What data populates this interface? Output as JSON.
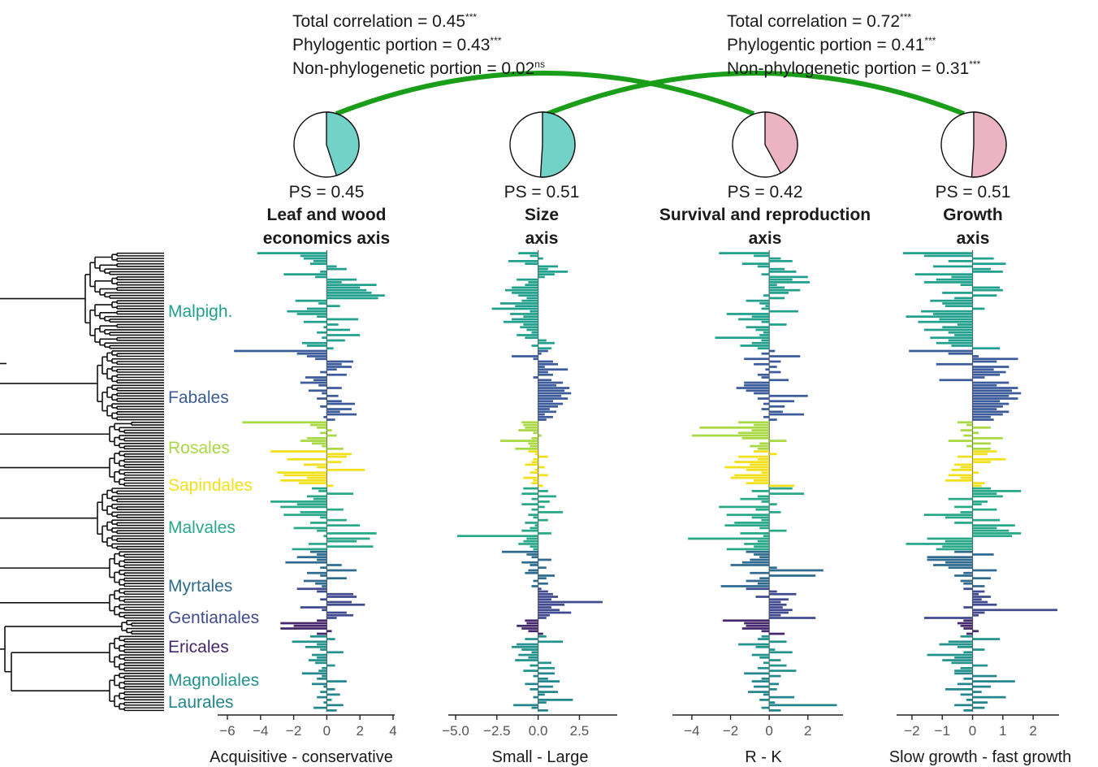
{
  "colors": {
    "Malpighiales": "#21a08d",
    "Fabales": "#3b5b9a",
    "Rosales": "#a8d843",
    "Sapindales": "#f2e01c",
    "Malvales": "#28a889",
    "Myrtales": "#2e6b8e",
    "Gentianales": "#404b8f",
    "Ericales": "#44286b",
    "Magnoliales": "#23928c",
    "Laurales": "#23868d",
    "connector": "#1a9e1a",
    "pie_cyan": "#73d2c7",
    "pie_pink": "#ecb4c2"
  },
  "correlations": [
    {
      "total": "Total correlation = 0.45",
      "total_sig": "***",
      "phylo": "Phylogentic portion = 0.43",
      "phylo_sig": "***",
      "nonphylo": "Non-phylogenetic portion = 0.02",
      "nonphylo_sig": "ns"
    },
    {
      "total": "Total correlation = 0.72",
      "total_sig": "***",
      "phylo": "Phylogentic portion = 0.41",
      "phylo_sig": "***",
      "nonphylo": "Non-phylogenetic portion = 0.31",
      "nonphylo_sig": "***"
    }
  ],
  "clades": [
    {
      "name": "Malpigh.",
      "key": "Malpighiales"
    },
    {
      "name": "Fabales",
      "key": "Fabales"
    },
    {
      "name": "Rosales",
      "key": "Rosales"
    },
    {
      "name": "Sapindales",
      "key": "Sapindales"
    },
    {
      "name": "Malvales",
      "key": "Malvales"
    },
    {
      "name": "Myrtales",
      "key": "Myrtales"
    },
    {
      "name": "Gentianales",
      "key": "Gentianales"
    },
    {
      "name": "Ericales",
      "key": "Ericales"
    },
    {
      "name": "Magnoliales",
      "key": "Magnoliales"
    },
    {
      "name": "Laurales",
      "key": "Laurales"
    }
  ],
  "chart_data": [
    {
      "type": "bar",
      "orientation": "horizontal",
      "title": "Leaf and wood economics axis",
      "ps_label": "PS = 0.45",
      "ps": 0.45,
      "pie_color": "pie_cyan",
      "xlabel": "Acquisitive - conservative",
      "xlim": [
        -6,
        4
      ],
      "xticks": [
        -6,
        -4,
        -2,
        0,
        2,
        4
      ],
      "xtick_labels": [
        "−6",
        "−4",
        "−2",
        "0",
        "2",
        "4"
      ],
      "values": {
        "Malpighiales": [
          -4.2,
          -1.6,
          -1.4,
          -0.8,
          -1.0,
          0.6,
          1.2,
          -0.4,
          -2.6,
          -0.7,
          1.8,
          0.9,
          3.0,
          2.0,
          2.4,
          2.7,
          3.5,
          3.1,
          -1.9,
          -0.5,
          0.8,
          -1.2,
          -2.4,
          -1.8,
          -0.6,
          1.9,
          -1.4,
          0.7,
          -0.2,
          1.4,
          -0.6,
          2.0,
          -0.3,
          1.1,
          -1.5,
          -1.2,
          0.4
        ],
        "Fabales": [
          -5.6,
          -1.8,
          -1.2,
          -0.7,
          1.6,
          0.9,
          1.5,
          0.6,
          -0.4,
          1.2,
          -1.3,
          -0.8,
          -1.6,
          -0.5,
          0.9,
          -1.1,
          -0.3,
          0.7,
          -0.6,
          0.9,
          1.7,
          -0.4,
          1.5,
          0.8,
          1.8,
          -0.2,
          0.5
        ],
        "Rosales": [
          -5.1,
          -1.0,
          -0.6,
          0.3,
          -0.4,
          0.6,
          -1.2,
          -1.6,
          -0.9,
          -0.3,
          1.0
        ],
        "Sapindales": [
          -3.4,
          1.5,
          1.2,
          -2.4,
          0.9,
          -1.4,
          -0.6,
          2.3,
          -3.0,
          -2.6,
          -1.2,
          -2.8,
          -1.7,
          0.4
        ],
        "Malvales": [
          -0.9,
          -0.5,
          1.6,
          -1.2,
          -0.8,
          -3.4,
          -1.8,
          -2.8,
          1.0,
          -1.6,
          -2.6,
          -0.4,
          1.2,
          -1.0,
          2.0,
          -2.0,
          -0.6,
          3.0,
          -0.2,
          2.6,
          1.8,
          -1.1,
          2.8,
          -2.1
        ],
        "Myrtales": [
          -1.0,
          -0.6,
          -1.8,
          -0.6,
          -2.5,
          0.9,
          -0.4,
          1.8,
          -1.2,
          -0.4,
          1.2,
          -1.4,
          -0.7,
          -0.3
        ],
        "Gentianales": [
          -1.8,
          -0.6,
          1.6,
          1.8,
          -0.4,
          1.5,
          2.3,
          -1.6,
          -0.3,
          1.2,
          1.6,
          0.6
        ],
        "Ericales": [
          -0.6,
          -2.8,
          -2.0,
          -2.8,
          0.3,
          -0.6
        ],
        "Magnoliales": [
          -1.0,
          0.5,
          -2.1,
          -0.6,
          -1.3,
          -0.4,
          1.0,
          -0.9,
          -0.6,
          -1.1,
          -0.7,
          0.5,
          -0.3,
          -0.5
        ],
        "Laurales": [
          -1.5,
          -0.3,
          -0.6,
          1.2,
          -0.9,
          -0.2,
          0.5,
          -0.4,
          0.8,
          -0.6,
          0.3,
          -0.2,
          1.0,
          -0.8,
          0.6
        ]
      }
    },
    {
      "type": "bar",
      "orientation": "horizontal",
      "title": "Size axis",
      "ps_label": "PS  = 0.51",
      "ps": 0.51,
      "pie_color": "pie_cyan",
      "xlabel": "Small - Large",
      "xlim": [
        -5,
        4.2
      ],
      "xticks": [
        -5,
        -2.5,
        0,
        2.5
      ],
      "xtick_labels": [
        "−5.0",
        "−2.5",
        "0.0",
        "2.5"
      ],
      "values": {
        "Malpighiales": [
          -1.2,
          -0.5,
          0.3,
          -1.8,
          -0.8,
          1.2,
          0.6,
          1.8,
          1.0,
          0.4,
          -1.3,
          -0.6,
          -0.8,
          -1.6,
          -2.0,
          -1.6,
          -1.2,
          -0.7,
          -1.0,
          -2.3,
          -1.4,
          -2.8,
          -0.5,
          -1.7,
          -0.9,
          -1.6,
          -2.1,
          -0.9,
          -1.1,
          -0.7,
          -0.4,
          -1.3,
          -0.8,
          0.5,
          1.0,
          -0.4,
          0.8
        ],
        "Fabales": [
          0.6,
          0.2,
          -1.6,
          -0.3,
          0.9,
          1.2,
          0.4,
          1.8,
          0.6,
          0.9,
          -0.3,
          0.8,
          1.5,
          1.1,
          1.9,
          1.6,
          2.0,
          1.4,
          1.8,
          0.9,
          1.5,
          1.2,
          0.7,
          1.1,
          0.4,
          0.9,
          0.5
        ],
        "Rosales": [
          -1.0,
          -0.9,
          -0.8,
          -1.2,
          -0.3,
          0.2,
          -0.4,
          -2.3,
          -0.6,
          -0.5,
          -1.4
        ],
        "Sapindales": [
          -0.6,
          -0.2,
          0.6,
          -0.3,
          -0.4,
          -0.8,
          0.4,
          -0.2,
          -0.5,
          0.6,
          -0.9,
          -0.3,
          -0.4,
          0.3
        ],
        "Malvales": [
          -0.9,
          0.6,
          -1.0,
          1.1,
          -0.4,
          0.7,
          -1.0,
          0.4,
          -0.4,
          1.5,
          -0.6,
          -0.3,
          0.6,
          -0.8,
          -0.2,
          -0.5,
          -1.0,
          0.8,
          -4.9,
          -0.7,
          -0.9,
          -1.2,
          -0.5,
          -0.3
        ],
        "Myrtales": [
          -2.2,
          -0.7,
          -0.4,
          0.8,
          -1.0,
          -0.5,
          0.5,
          -0.6,
          -0.8,
          1.0,
          0.5,
          -0.3,
          0.6,
          -0.4
        ],
        "Gentianales": [
          0.2,
          0.6,
          0.9,
          1.2,
          0.8,
          3.9,
          1.6,
          0.8,
          1.3,
          2.0,
          0.7,
          0.5
        ],
        "Ericales": [
          -0.8,
          -0.7,
          -1.3,
          -1.0,
          -0.6,
          0.3
        ],
        "Magnoliales": [
          0.5,
          -0.8,
          1.5,
          -1.3,
          -1.6,
          -1.0,
          -0.4,
          -1.2,
          -0.6,
          -1.4,
          0.8,
          -0.5,
          1.0,
          -0.9
        ],
        "Laurales": [
          1.0,
          -0.3,
          0.6,
          1.3,
          -0.8,
          0.9,
          -0.5,
          1.2,
          0.4,
          -0.3,
          2.1,
          0.5,
          -1.5,
          -0.4,
          0.6
        ]
      }
    },
    {
      "type": "bar",
      "orientation": "horizontal",
      "title": "Survival and reproduction axis",
      "ps_label": "PS  = 0.42",
      "ps": 0.42,
      "pie_color": "pie_pink",
      "xlabel": "R - K",
      "xlim": [
        -4.5,
        3.9
      ],
      "xticks": [
        -4,
        -2,
        0,
        2
      ],
      "xtick_labels": [
        "−4",
        "−2",
        "0",
        "2"
      ],
      "values": {
        "Malpighiales": [
          -2.6,
          -0.8,
          0.6,
          1.2,
          -1.4,
          -0.6,
          0.8,
          1.4,
          -0.4,
          2.0,
          1.2,
          2.1,
          0.4,
          0.8,
          1.6,
          1.0,
          -0.3,
          0.8,
          -1.2,
          -0.5,
          -0.2,
          -0.4,
          1.5,
          -2.2,
          -0.9,
          -1.6,
          -0.4,
          0.9,
          -1.2,
          -0.7,
          -0.3,
          -0.5,
          -2.8,
          -0.4,
          -0.9,
          -1.5,
          -0.6
        ],
        "Fabales": [
          0.3,
          -0.4,
          1.6,
          -1.3,
          0.6,
          -0.8,
          0.4,
          -0.2,
          0.6,
          -0.6,
          -0.4,
          1.0,
          -1.3,
          -1.3,
          -1.7,
          -1.2,
          -0.8,
          2.0,
          -0.6,
          1.3,
          -0.3,
          0.8,
          -0.4,
          0.7,
          1.8,
          -0.3,
          0.4
        ],
        "Rosales": [
          -1.6,
          -0.8,
          -3.6,
          -0.9,
          -1.6,
          -4.0,
          -1.4,
          0.9,
          -0.5,
          -1.0,
          -0.6
        ],
        "Sapindales": [
          -0.8,
          0.4,
          -1.6,
          -0.6,
          -1.8,
          -1.0,
          -2.3,
          -1.2,
          -0.4,
          -1.8,
          -2.0,
          -0.8,
          -1.2,
          1.3
        ],
        "Malvales": [
          1.2,
          -0.9,
          1.8,
          -0.6,
          -1.5,
          -0.4,
          0.4,
          -2.6,
          -0.7,
          0.6,
          -2.2,
          -0.9,
          -0.4,
          -1.8,
          -2.3,
          -0.5,
          0.9,
          -1.5,
          -0.3,
          -4.2,
          -0.6,
          -1.3,
          -0.8,
          -2.2
        ],
        "Myrtales": [
          -1.2,
          -0.8,
          -0.5,
          -1.0,
          -1.4,
          -2.0,
          0.4,
          2.8,
          -1.0,
          2.4,
          -0.5,
          -1.2,
          -0.6,
          -2.5
        ],
        "Gentianales": [
          -1.2,
          0.4,
          1.4,
          -0.7,
          1.0,
          0.6,
          0.9,
          0.7,
          1.2,
          1.0,
          0.6,
          2.4
        ],
        "Ericales": [
          -2.4,
          -1.3,
          -1.2,
          -1.4,
          -0.4,
          0.8
        ],
        "Magnoliales": [
          -0.4,
          -0.6,
          0.9,
          -1.6,
          -0.7,
          0.3,
          1.2,
          -0.9,
          -0.5,
          0.6,
          -0.3,
          0.9,
          -0.6,
          1.4
        ],
        "Laurales": [
          -1.3,
          0.6,
          -0.4,
          -0.9,
          0.5,
          -0.8,
          0.4,
          -1.1,
          -0.3,
          1.3,
          -0.5,
          0.3,
          3.5,
          -0.4,
          0.6
        ]
      }
    },
    {
      "type": "bar",
      "orientation": "horizontal",
      "title": "Growth axis",
      "ps_label": "PS  = 0.51",
      "ps": 0.51,
      "pie_color": "pie_pink",
      "xlabel": "Slow growth - fast growth",
      "xlim": [
        -2.4,
        2.8
      ],
      "xticks": [
        -2,
        -1,
        0,
        1,
        2
      ],
      "xtick_labels": [
        "−2",
        "−1",
        "0",
        "1",
        "2"
      ],
      "values": {
        "Malpighiales": [
          -2.3,
          -1.6,
          0.7,
          -0.8,
          1.1,
          -1.3,
          0.6,
          1.0,
          -1.9,
          -0.7,
          -1.2,
          -1.6,
          -0.4,
          0.9,
          1.0,
          -1.0,
          0.8,
          -0.6,
          -1.4,
          -1.0,
          -0.9,
          0.4,
          -1.7,
          -1.3,
          -2.2,
          -1.1,
          -1.8,
          -0.5,
          -1.0,
          -1.6,
          -0.8,
          -0.6,
          -1.4,
          -0.8,
          -1.2,
          -0.7,
          0.9
        ],
        "Fabales": [
          -2.1,
          -0.8,
          0.2,
          1.5,
          0.8,
          -1.2,
          1.2,
          0.7,
          1.1,
          0.9,
          0.4,
          -1.1,
          1.2,
          0.8,
          1.5,
          1.3,
          1.6,
          1.2,
          1.5,
          0.9,
          1.2,
          1.0,
          0.8,
          1.2,
          1.0,
          0.6,
          0.7
        ],
        "Rosales": [
          -0.5,
          -0.2,
          0.6,
          -0.4,
          0.2,
          -0.3,
          1.0,
          -0.8,
          0.6,
          -0.2,
          0.6
        ],
        "Sapindales": [
          0.8,
          0.5,
          -0.5,
          1.1,
          0.6,
          -0.6,
          -0.4,
          -0.7,
          0.2,
          -0.8,
          -0.4,
          -0.9,
          0.4,
          0.3
        ],
        "Malvales": [
          0.6,
          1.6,
          0.8,
          1.0,
          -0.8,
          0.5,
          0.3,
          -0.6,
          0.8,
          -0.4,
          -1.6,
          -0.9,
          0.9,
          -0.6,
          1.4,
          0.8,
          1.2,
          1.6,
          1.3,
          -1.5,
          -0.9,
          -2.2,
          -1.0,
          -1.2
        ],
        "Myrtales": [
          -0.6,
          0.7,
          -1.5,
          -1.5,
          -0.9,
          -1.3,
          -0.8,
          0.8,
          -0.3,
          -0.6,
          0.6,
          -0.4,
          -0.3,
          0.4
        ],
        "Gentianales": [
          -0.3,
          0.4,
          0.2,
          0.6,
          0.3,
          0.5,
          0.8,
          -0.3,
          2.8,
          0.4,
          0.2,
          -1.6
        ],
        "Ericales": [
          -0.3,
          -0.5,
          -0.4,
          -0.3,
          0.2,
          -0.2
        ],
        "Magnoliales": [
          -0.4,
          0.9,
          -0.8,
          -1.1,
          -0.5,
          0.4,
          -0.3,
          -1.5,
          -0.6,
          -1.0,
          -0.7,
          0.5,
          -0.4,
          -0.6
        ],
        "Laurales": [
          -0.6,
          0.8,
          -0.3,
          1.4,
          -0.5,
          0.6,
          -0.9,
          0.3,
          -0.4,
          1.1,
          -0.2,
          0.5,
          -0.6,
          0.4,
          -0.3
        ]
      }
    }
  ]
}
